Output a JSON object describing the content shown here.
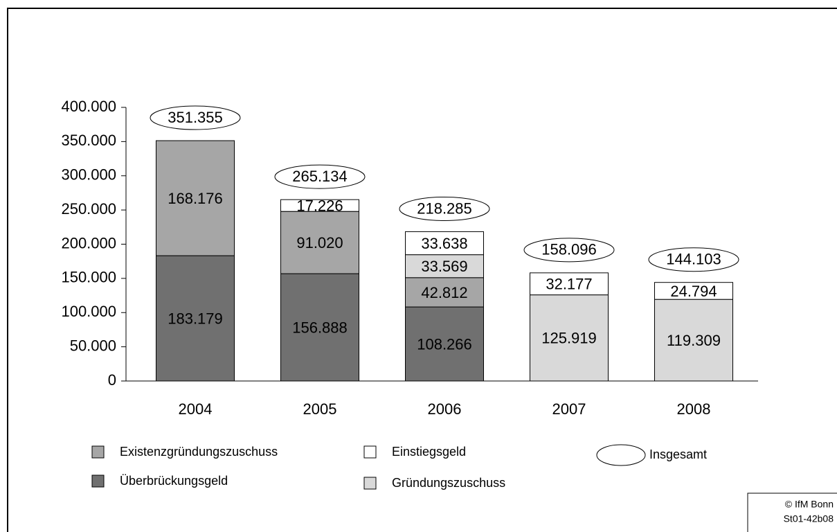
{
  "chart_data": {
    "type": "stacked_bar",
    "categories": [
      "2004",
      "2005",
      "2006",
      "2007",
      "2008"
    ],
    "series": [
      {
        "name": "Überbrückungsgeld",
        "color": "#707070",
        "values": [
          183179,
          156888,
          108266,
          null,
          null
        ],
        "value_labels": [
          "183.179",
          "156.888",
          "108.266",
          null,
          null
        ]
      },
      {
        "name": "Existenzgründungszuschuss",
        "color": "#a6a6a6",
        "values": [
          168176,
          91020,
          42812,
          null,
          null
        ],
        "value_labels": [
          "168.176",
          "91.020",
          "42.812",
          null,
          null
        ]
      },
      {
        "name": "Gründungszuschuss",
        "color": "#d9d9d9",
        "values": [
          null,
          null,
          33569,
          125919,
          119309
        ],
        "value_labels": [
          null,
          null,
          "33.569",
          "125.919",
          "119.309"
        ]
      },
      {
        "name": "Einstiegsgeld",
        "color": "#ffffff",
        "values": [
          null,
          17226,
          33638,
          32177,
          24794
        ],
        "value_labels": [
          null,
          "17.226",
          "33.638",
          "32.177",
          "24.794"
        ]
      }
    ],
    "totals": {
      "name": "Insgesamt",
      "values": [
        351355,
        265134,
        218285,
        158096,
        144103
      ],
      "value_labels": [
        "351.355",
        "265.134",
        "218.285",
        "158.096",
        "144.103"
      ]
    },
    "ylim": [
      0,
      400000
    ],
    "yticks": [
      0,
      {
        "value": 50000,
        "label": "50.000"
      },
      {
        "value": 100000,
        "label": "100.000"
      },
      {
        "value": 150000,
        "label": "150.000"
      },
      {
        "value": 200000,
        "label": "200.000"
      },
      {
        "value": 250000,
        "label": "250.000"
      },
      {
        "value": 300000,
        "label": "300.000"
      },
      {
        "value": 350000,
        "label": "350.000"
      },
      {
        "value": 400000,
        "label": "400.000"
      }
    ],
    "source": [
      "© IfM Bonn",
      "St01-42b08"
    ]
  }
}
